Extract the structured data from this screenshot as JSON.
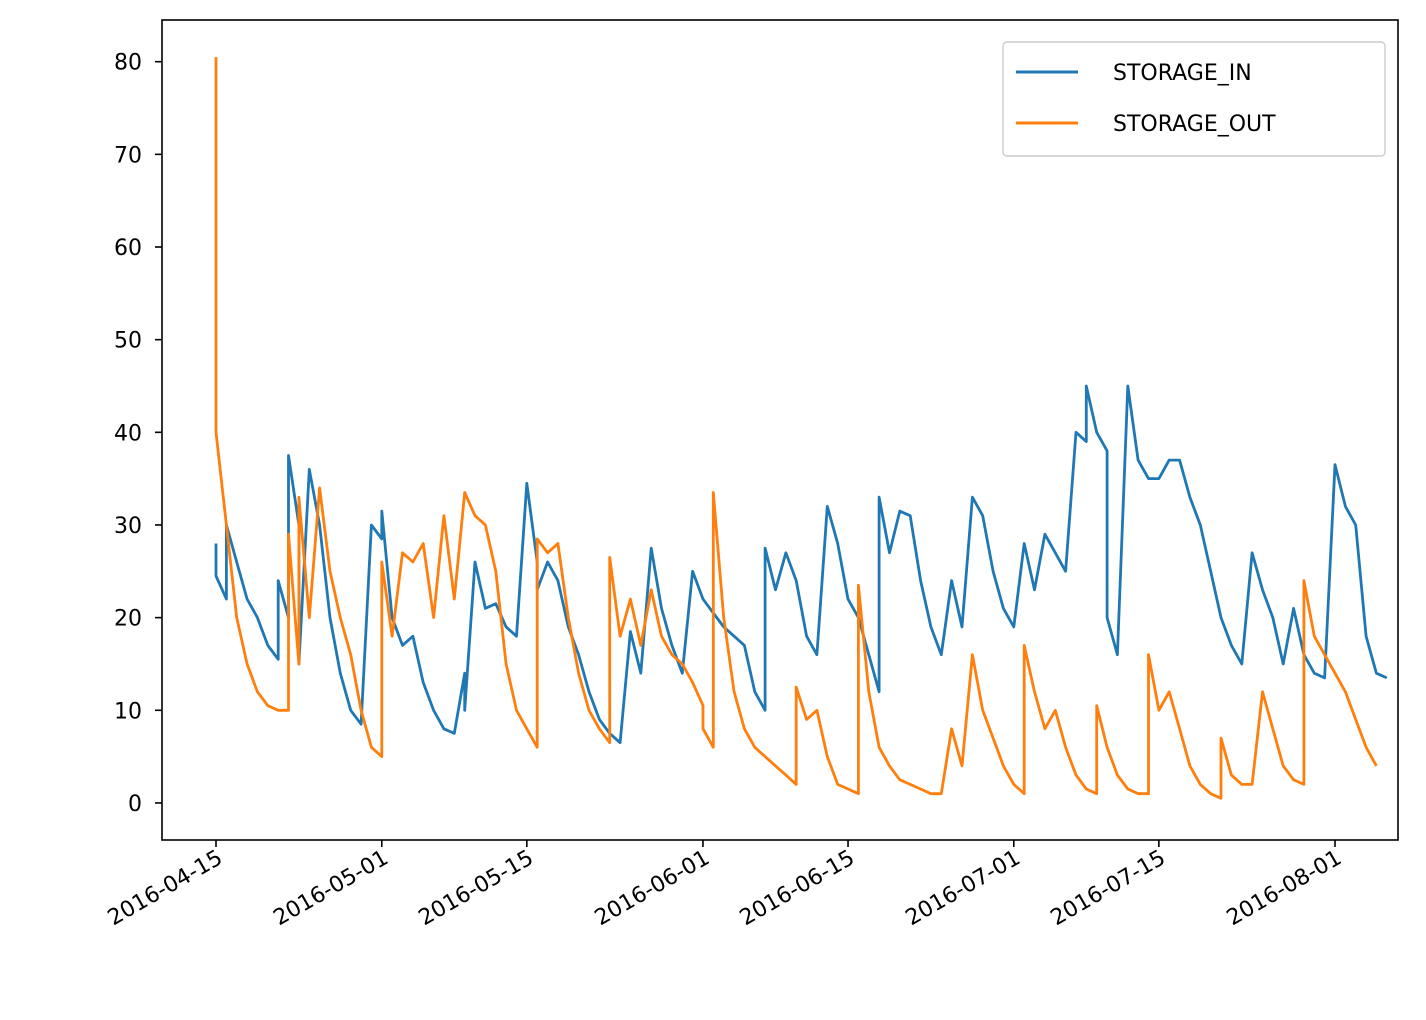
{
  "chart_data": {
    "type": "line",
    "title": "",
    "xlabel": "",
    "ylabel": "",
    "x_range": [
      "2016-04-09",
      "2016-08-07"
    ],
    "ylim": [
      -4,
      84.5
    ],
    "grid": false,
    "legend_placement": "top-right",
    "x_ticks": [
      "2016-04-15",
      "2016-05-01",
      "2016-05-15",
      "2016-06-01",
      "2016-06-15",
      "2016-07-01",
      "2016-07-15",
      "2016-08-01"
    ],
    "y_ticks": [
      0,
      10,
      20,
      30,
      40,
      50,
      60,
      70,
      80
    ],
    "series": [
      {
        "name": "STORAGE_IN",
        "color": "#1f77b4",
        "points": [
          [
            "2016-04-15",
            28
          ],
          [
            "2016-04-15",
            24.5
          ],
          [
            "2016-04-16",
            22
          ],
          [
            "2016-04-16",
            30
          ],
          [
            "2016-04-17",
            26
          ],
          [
            "2016-04-18",
            22
          ],
          [
            "2016-04-19",
            20
          ],
          [
            "2016-04-20",
            17
          ],
          [
            "2016-04-21",
            15.5
          ],
          [
            "2016-04-21",
            24
          ],
          [
            "2016-04-22",
            20
          ],
          [
            "2016-04-22",
            37.5
          ],
          [
            "2016-04-23",
            30
          ],
          [
            "2016-04-23",
            15
          ],
          [
            "2016-04-24",
            36
          ],
          [
            "2016-04-25",
            30
          ],
          [
            "2016-04-26",
            20
          ],
          [
            "2016-04-27",
            14
          ],
          [
            "2016-04-28",
            10
          ],
          [
            "2016-04-29",
            8.5
          ],
          [
            "2016-04-30",
            30
          ],
          [
            "2016-05-01",
            28.5
          ],
          [
            "2016-05-01",
            31.5
          ],
          [
            "2016-05-02",
            20
          ],
          [
            "2016-05-03",
            17
          ],
          [
            "2016-05-04",
            18
          ],
          [
            "2016-05-05",
            13
          ],
          [
            "2016-05-06",
            10
          ],
          [
            "2016-05-07",
            8
          ],
          [
            "2016-05-08",
            7.5
          ],
          [
            "2016-05-09",
            14
          ],
          [
            "2016-05-09",
            10
          ],
          [
            "2016-05-10",
            26
          ],
          [
            "2016-05-11",
            21
          ],
          [
            "2016-05-12",
            21.5
          ],
          [
            "2016-05-13",
            19
          ],
          [
            "2016-05-14",
            18
          ],
          [
            "2016-05-15",
            34.5
          ],
          [
            "2016-05-16",
            26
          ],
          [
            "2016-05-16",
            23
          ],
          [
            "2016-05-17",
            26
          ],
          [
            "2016-05-18",
            24
          ],
          [
            "2016-05-19",
            19
          ],
          [
            "2016-05-20",
            16
          ],
          [
            "2016-05-21",
            12
          ],
          [
            "2016-05-22",
            9
          ],
          [
            "2016-05-23",
            7.5
          ],
          [
            "2016-05-24",
            6.5
          ],
          [
            "2016-05-25",
            18.5
          ],
          [
            "2016-05-26",
            14
          ],
          [
            "2016-05-27",
            27.5
          ],
          [
            "2016-05-28",
            21
          ],
          [
            "2016-05-29",
            17
          ],
          [
            "2016-05-30",
            14
          ],
          [
            "2016-05-31",
            25
          ],
          [
            "2016-06-01",
            22
          ],
          [
            "2016-06-02",
            20.5
          ],
          [
            "2016-06-03",
            19
          ],
          [
            "2016-06-04",
            18
          ],
          [
            "2016-06-05",
            17
          ],
          [
            "2016-06-06",
            12
          ],
          [
            "2016-06-07",
            10
          ],
          [
            "2016-06-07",
            27.5
          ],
          [
            "2016-06-08",
            23
          ],
          [
            "2016-06-09",
            27
          ],
          [
            "2016-06-10",
            24
          ],
          [
            "2016-06-11",
            18
          ],
          [
            "2016-06-12",
            16
          ],
          [
            "2016-06-13",
            32
          ],
          [
            "2016-06-14",
            28
          ],
          [
            "2016-06-15",
            22
          ],
          [
            "2016-06-16",
            20
          ],
          [
            "2016-06-17",
            16
          ],
          [
            "2016-06-18",
            12
          ],
          [
            "2016-06-18",
            33
          ],
          [
            "2016-06-19",
            27
          ],
          [
            "2016-06-20",
            31.5
          ],
          [
            "2016-06-21",
            31
          ],
          [
            "2016-06-22",
            24
          ],
          [
            "2016-06-23",
            19
          ],
          [
            "2016-06-24",
            16
          ],
          [
            "2016-06-25",
            24
          ],
          [
            "2016-06-26",
            19
          ],
          [
            "2016-06-27",
            33
          ],
          [
            "2016-06-28",
            31
          ],
          [
            "2016-06-29",
            25
          ],
          [
            "2016-06-30",
            21
          ],
          [
            "2016-07-01",
            19
          ],
          [
            "2016-07-02",
            28
          ],
          [
            "2016-07-03",
            23
          ],
          [
            "2016-07-04",
            29
          ],
          [
            "2016-07-05",
            27
          ],
          [
            "2016-07-06",
            25
          ],
          [
            "2016-07-07",
            40
          ],
          [
            "2016-07-08",
            39
          ],
          [
            "2016-07-08",
            45
          ],
          [
            "2016-07-09",
            40
          ],
          [
            "2016-07-10",
            38
          ],
          [
            "2016-07-10",
            20
          ],
          [
            "2016-07-11",
            16
          ],
          [
            "2016-07-12",
            45
          ],
          [
            "2016-07-13",
            37
          ],
          [
            "2016-07-14",
            35
          ],
          [
            "2016-07-15",
            35
          ],
          [
            "2016-07-16",
            37
          ],
          [
            "2016-07-17",
            37
          ],
          [
            "2016-07-18",
            33
          ],
          [
            "2016-07-19",
            30
          ],
          [
            "2016-07-20",
            25
          ],
          [
            "2016-07-21",
            20
          ],
          [
            "2016-07-22",
            17
          ],
          [
            "2016-07-23",
            15
          ],
          [
            "2016-07-24",
            27
          ],
          [
            "2016-07-25",
            23
          ],
          [
            "2016-07-26",
            20
          ],
          [
            "2016-07-27",
            15
          ],
          [
            "2016-07-28",
            21
          ],
          [
            "2016-07-29",
            16
          ],
          [
            "2016-07-30",
            14
          ],
          [
            "2016-07-31",
            13.5
          ],
          [
            "2016-08-01",
            36.5
          ],
          [
            "2016-08-02",
            32
          ],
          [
            "2016-08-03",
            30
          ],
          [
            "2016-08-04",
            18
          ],
          [
            "2016-08-05",
            14
          ],
          [
            "2016-08-06",
            13.5
          ]
        ]
      },
      {
        "name": "STORAGE_OUT",
        "color": "#ff7f0e",
        "points": [
          [
            "2016-04-15",
            80.5
          ],
          [
            "2016-04-15",
            40
          ],
          [
            "2016-04-16",
            30
          ],
          [
            "2016-04-17",
            20
          ],
          [
            "2016-04-18",
            15
          ],
          [
            "2016-04-19",
            12
          ],
          [
            "2016-04-20",
            10.5
          ],
          [
            "2016-04-21",
            10
          ],
          [
            "2016-04-22",
            10
          ],
          [
            "2016-04-22",
            29
          ],
          [
            "2016-04-23",
            15
          ],
          [
            "2016-04-23",
            33
          ],
          [
            "2016-04-24",
            20
          ],
          [
            "2016-04-25",
            34
          ],
          [
            "2016-04-26",
            25
          ],
          [
            "2016-04-27",
            20
          ],
          [
            "2016-04-28",
            16
          ],
          [
            "2016-04-29",
            10
          ],
          [
            "2016-04-30",
            6
          ],
          [
            "2016-05-01",
            5
          ],
          [
            "2016-05-01",
            26
          ],
          [
            "2016-05-02",
            18
          ],
          [
            "2016-05-03",
            27
          ],
          [
            "2016-05-04",
            26
          ],
          [
            "2016-05-05",
            28
          ],
          [
            "2016-05-06",
            20
          ],
          [
            "2016-05-07",
            31
          ],
          [
            "2016-05-08",
            22
          ],
          [
            "2016-05-09",
            33.5
          ],
          [
            "2016-05-10",
            31
          ],
          [
            "2016-05-11",
            30
          ],
          [
            "2016-05-12",
            25
          ],
          [
            "2016-05-13",
            15
          ],
          [
            "2016-05-14",
            10
          ],
          [
            "2016-05-15",
            8
          ],
          [
            "2016-05-16",
            6
          ],
          [
            "2016-05-16",
            28.5
          ],
          [
            "2016-05-17",
            27
          ],
          [
            "2016-05-18",
            28
          ],
          [
            "2016-05-19",
            20
          ],
          [
            "2016-05-20",
            14
          ],
          [
            "2016-05-21",
            10
          ],
          [
            "2016-05-22",
            8
          ],
          [
            "2016-05-23",
            6.5
          ],
          [
            "2016-05-23",
            26.5
          ],
          [
            "2016-05-24",
            18
          ],
          [
            "2016-05-25",
            22
          ],
          [
            "2016-05-26",
            17
          ],
          [
            "2016-05-27",
            23
          ],
          [
            "2016-05-28",
            18
          ],
          [
            "2016-05-29",
            16
          ],
          [
            "2016-05-30",
            15
          ],
          [
            "2016-05-31",
            13
          ],
          [
            "2016-06-01",
            10.5
          ],
          [
            "2016-06-01",
            8
          ],
          [
            "2016-06-02",
            6
          ],
          [
            "2016-06-02",
            33.5
          ],
          [
            "2016-06-03",
            20
          ],
          [
            "2016-06-04",
            12
          ],
          [
            "2016-06-05",
            8
          ],
          [
            "2016-06-06",
            6
          ],
          [
            "2016-06-07",
            5
          ],
          [
            "2016-06-08",
            4
          ],
          [
            "2016-06-09",
            3
          ],
          [
            "2016-06-10",
            2
          ],
          [
            "2016-06-10",
            12.5
          ],
          [
            "2016-06-11",
            9
          ],
          [
            "2016-06-12",
            10
          ],
          [
            "2016-06-13",
            5
          ],
          [
            "2016-06-14",
            2
          ],
          [
            "2016-06-15",
            1.5
          ],
          [
            "2016-06-16",
            1
          ],
          [
            "2016-06-16",
            23.5
          ],
          [
            "2016-06-17",
            12
          ],
          [
            "2016-06-18",
            6
          ],
          [
            "2016-06-19",
            4
          ],
          [
            "2016-06-20",
            2.5
          ],
          [
            "2016-06-21",
            2
          ],
          [
            "2016-06-22",
            1.5
          ],
          [
            "2016-06-23",
            1
          ],
          [
            "2016-06-24",
            1
          ],
          [
            "2016-06-25",
            8
          ],
          [
            "2016-06-26",
            4
          ],
          [
            "2016-06-27",
            16
          ],
          [
            "2016-06-28",
            10
          ],
          [
            "2016-06-29",
            7
          ],
          [
            "2016-06-30",
            4
          ],
          [
            "2016-07-01",
            2
          ],
          [
            "2016-07-02",
            1
          ],
          [
            "2016-07-02",
            17
          ],
          [
            "2016-07-03",
            12
          ],
          [
            "2016-07-04",
            8
          ],
          [
            "2016-07-05",
            10
          ],
          [
            "2016-07-06",
            6
          ],
          [
            "2016-07-07",
            3
          ],
          [
            "2016-07-08",
            1.5
          ],
          [
            "2016-07-09",
            1
          ],
          [
            "2016-07-09",
            10.5
          ],
          [
            "2016-07-10",
            6
          ],
          [
            "2016-07-11",
            3
          ],
          [
            "2016-07-12",
            1.5
          ],
          [
            "2016-07-13",
            1
          ],
          [
            "2016-07-14",
            1
          ],
          [
            "2016-07-14",
            16
          ],
          [
            "2016-07-15",
            10
          ],
          [
            "2016-07-16",
            12
          ],
          [
            "2016-07-17",
            8
          ],
          [
            "2016-07-18",
            4
          ],
          [
            "2016-07-19",
            2
          ],
          [
            "2016-07-20",
            1
          ],
          [
            "2016-07-21",
            0.5
          ],
          [
            "2016-07-21",
            7
          ],
          [
            "2016-07-22",
            3
          ],
          [
            "2016-07-23",
            2
          ],
          [
            "2016-07-24",
            2
          ],
          [
            "2016-07-25",
            12
          ],
          [
            "2016-07-26",
            8
          ],
          [
            "2016-07-27",
            4
          ],
          [
            "2016-07-28",
            2.5
          ],
          [
            "2016-07-29",
            2
          ],
          [
            "2016-07-29",
            24
          ],
          [
            "2016-07-30",
            18
          ],
          [
            "2016-07-31",
            16
          ],
          [
            "2016-08-01",
            14
          ],
          [
            "2016-08-02",
            12
          ],
          [
            "2016-08-03",
            9
          ],
          [
            "2016-08-04",
            6
          ],
          [
            "2016-08-05",
            4
          ]
        ]
      }
    ]
  }
}
